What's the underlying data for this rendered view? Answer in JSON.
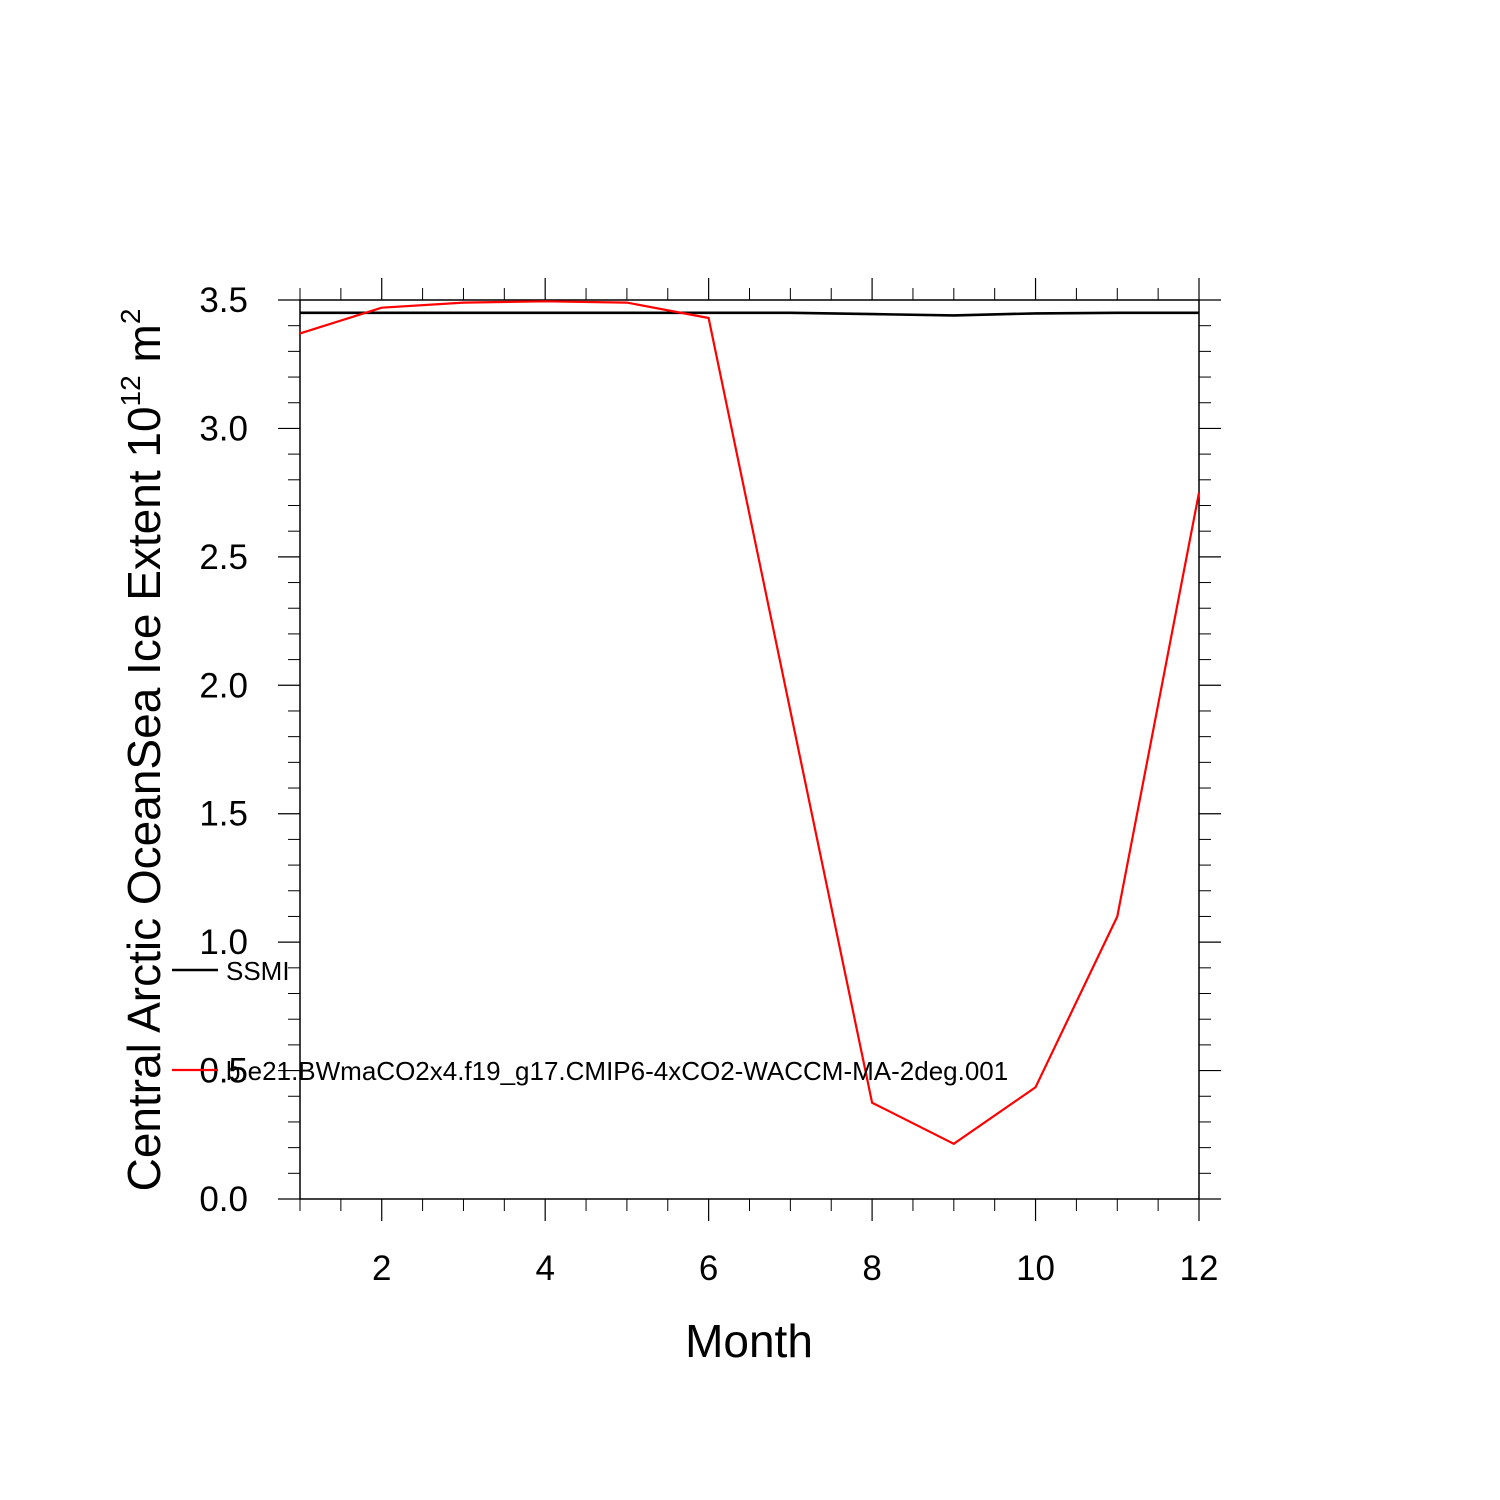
{
  "chart_data": {
    "type": "line",
    "title": "",
    "xlabel": "Month",
    "ylabel_main": "Central Arctic OceanSea Ice Extent 10",
    "ylabel_exp1": "12",
    "ylabel_mid": " m",
    "ylabel_exp2": "2",
    "xlim": [
      1,
      12
    ],
    "ylim": [
      0.0,
      3.5
    ],
    "xticks": [
      2,
      4,
      6,
      8,
      10,
      12
    ],
    "xtick_labels": [
      "2",
      "4",
      "6",
      "8",
      "10",
      "12"
    ],
    "yticks": [
      0.0,
      0.5,
      1.0,
      1.5,
      2.0,
      2.5,
      3.0,
      3.5
    ],
    "ytick_labels": [
      "0.0",
      "0.5",
      "1.0",
      "1.5",
      "2.0",
      "2.5",
      "3.0",
      "3.5"
    ],
    "grid": false,
    "legend_position": "left-center",
    "x": [
      1,
      2,
      3,
      4,
      5,
      6,
      7,
      8,
      9,
      10,
      11,
      12
    ],
    "series": [
      {
        "name": "SSMI",
        "color": "#000000",
        "values": [
          3.45,
          3.45,
          3.45,
          3.45,
          3.45,
          3.45,
          3.45,
          3.445,
          3.44,
          3.448,
          3.45,
          3.45
        ]
      },
      {
        "name": "b.e21.BWmaCO2x4.f19_g17.CMIP6-4xCO2-WACCM-MA-2deg.001",
        "color": "#ff0000",
        "values": [
          3.37,
          3.47,
          3.49,
          3.495,
          3.49,
          3.43,
          1.9,
          0.375,
          0.215,
          0.435,
          1.1,
          2.75
        ]
      }
    ]
  }
}
